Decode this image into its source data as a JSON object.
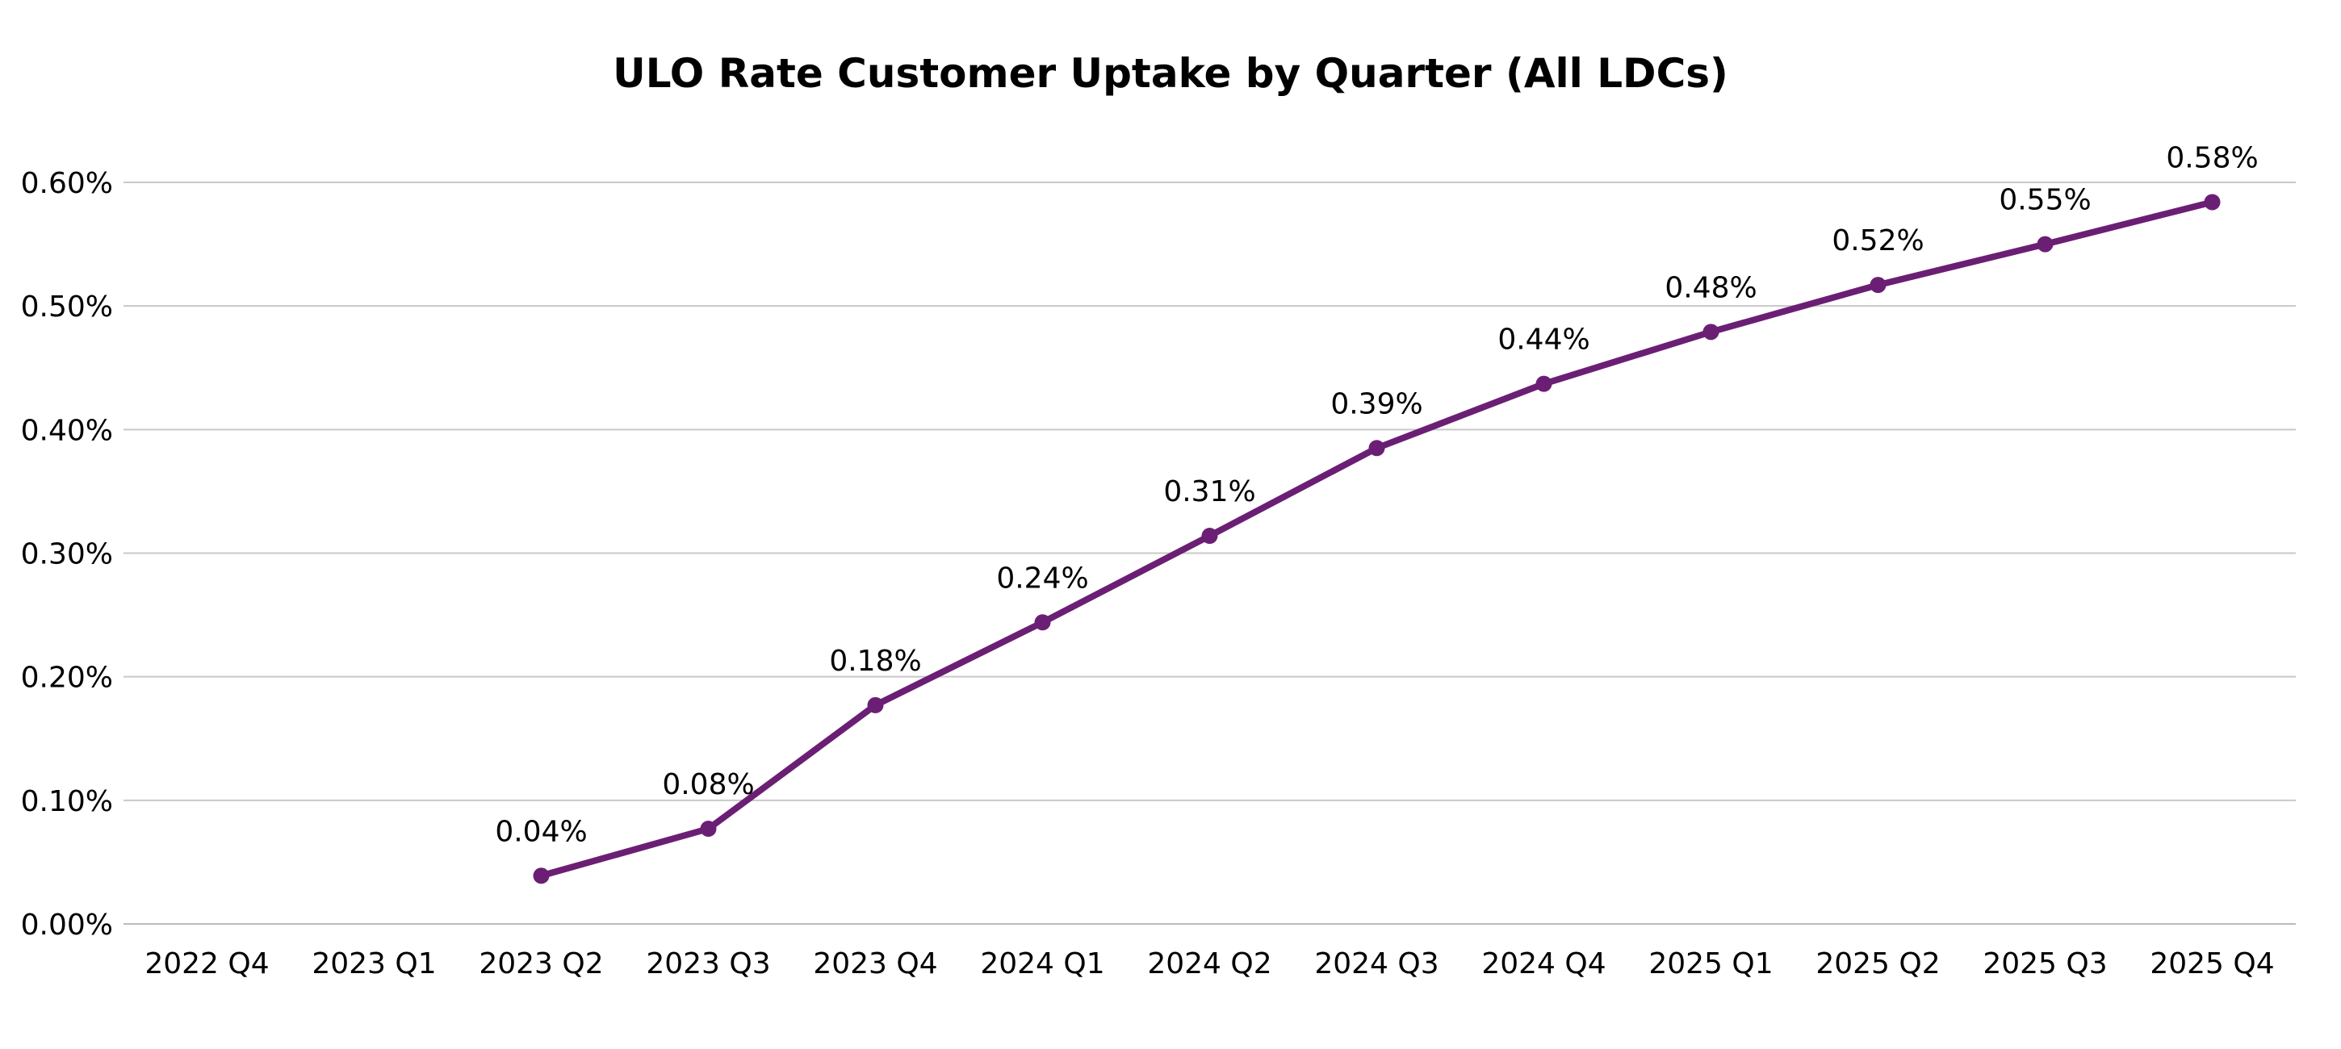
{
  "chart_data": {
    "type": "line",
    "title": "ULO Rate Customer Uptake by Quarter (All LDCs)",
    "xlabel": "",
    "ylabel": "",
    "categories": [
      "2022 Q4",
      "2023 Q1",
      "2023 Q2",
      "2023 Q3",
      "2023 Q4",
      "2024 Q1",
      "2024 Q2",
      "2024 Q3",
      "2024 Q4",
      "2025 Q1",
      "2025 Q2",
      "2025 Q3",
      "2025 Q4"
    ],
    "series": [
      {
        "values": [
          null,
          null,
          0.039,
          0.077,
          0.177,
          0.244,
          0.314,
          0.385,
          0.437,
          0.479,
          0.517,
          0.55,
          0.584
        ],
        "data_labels": [
          "",
          "",
          "0.04%",
          "0.08%",
          "0.18%",
          "0.24%",
          "0.31%",
          "0.39%",
          "0.44%",
          "0.48%",
          "0.52%",
          "0.55%",
          "0.58%"
        ],
        "color": "#6B1F74"
      }
    ],
    "ylim": [
      0,
      0.6
    ],
    "yticks": [
      0,
      0.1,
      0.2,
      0.3,
      0.4,
      0.5,
      0.6
    ],
    "ytick_labels": [
      "0.00%",
      "0.10%",
      "0.20%",
      "0.30%",
      "0.40%",
      "0.50%",
      "0.60%"
    ],
    "grid": "horizontal",
    "grid_color": "#C8C8C8",
    "legend": "none"
  }
}
